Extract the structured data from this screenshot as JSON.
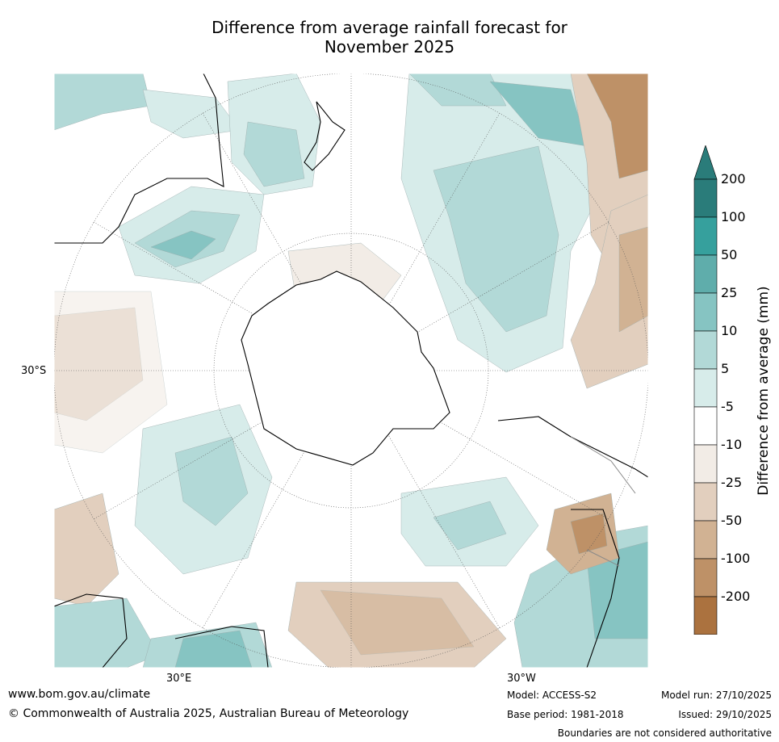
{
  "title": {
    "line1": "Difference from average rainfall forecast for",
    "line2": "November 2025"
  },
  "map": {
    "projection": "south-polar-stereographic",
    "lat_label": "30°S",
    "lon_labels": {
      "east": "30°E",
      "west": "30°W"
    },
    "land_outline_color": "#000000",
    "border_color": "#888888"
  },
  "colorbar": {
    "title": "Difference from average (mm)",
    "bins": [
      {
        "label": "200",
        "color": "#2a7c7a"
      },
      {
        "label": "100",
        "color": "#36a09d"
      },
      {
        "label": "50",
        "color": "#5fadab"
      },
      {
        "label": "25",
        "color": "#86c4c2"
      },
      {
        "label": "10",
        "color": "#b2d9d7"
      },
      {
        "label": "5",
        "color": "#d7ecea"
      },
      {
        "label": "-5",
        "color": "#ffffff"
      },
      {
        "label": "-10",
        "color": "#f2ece6"
      },
      {
        "label": "-25",
        "color": "#e2cfbe"
      },
      {
        "label": "-50",
        "color": "#d1b293"
      },
      {
        "label": "-100",
        "color": "#be9167"
      },
      {
        "label": "-200",
        "color": "#ab723f"
      }
    ],
    "low_extend_color": "#935b25",
    "high_extend_color": "#2a7c7a"
  },
  "footer": {
    "site": "www.bom.gov.au/climate",
    "copyright": "© Commonwealth of Australia 2025, Australian Bureau of Meteorology",
    "model": "Model: ACCESS-S2",
    "base_period": "Base period: 1981-2018",
    "model_run": "Model run: 27/10/2025",
    "issued": "Issued: 29/10/2025",
    "disclaimer": "Boundaries are not considered authoritative"
  }
}
